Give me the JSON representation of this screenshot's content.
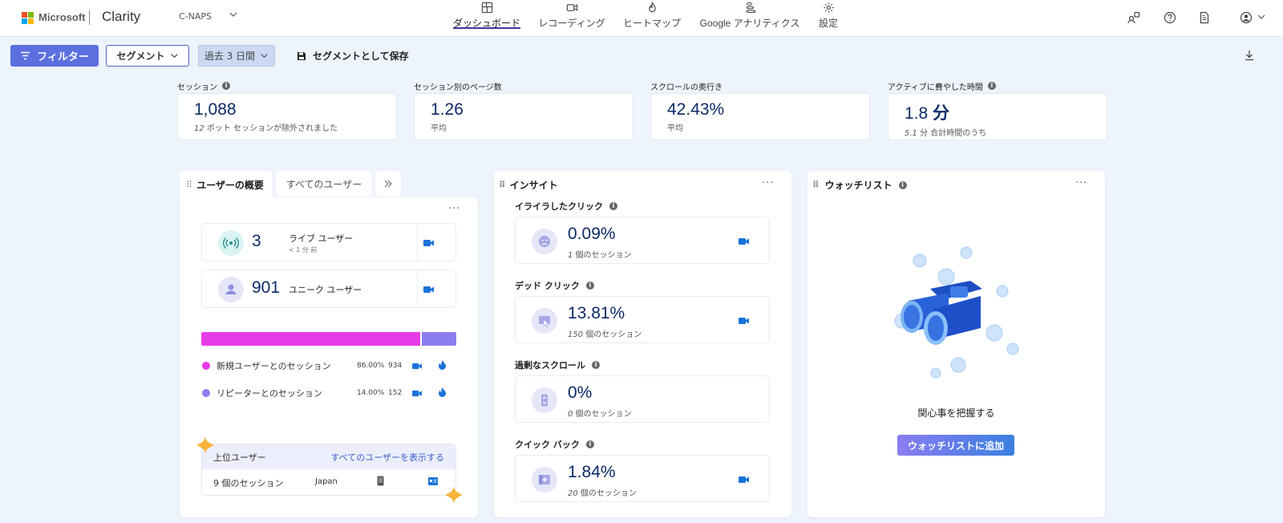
{
  "brand": {
    "company": "Microsoft",
    "app": "Clarity",
    "project": "C-NAPS"
  },
  "nav": [
    {
      "label": "ダッシュボード",
      "icon": "dashboard-icon",
      "active": true
    },
    {
      "label": "レコーディング",
      "icon": "video-icon",
      "active": false
    },
    {
      "label": "ヒートマップ",
      "icon": "flame-icon",
      "active": false
    },
    {
      "label": "Google アナリティクス",
      "icon": "analytics-icon",
      "active": false
    },
    {
      "label": "設定",
      "icon": "gear-icon",
      "active": false
    }
  ],
  "toolbar": {
    "filter_label": "フィルター",
    "segment_label": "セグメント",
    "range_label": "過去 3 日間",
    "save_label": "セグメントとして保存"
  },
  "metrics": [
    {
      "label": "セッション",
      "value": "1,088",
      "sub_num": "12",
      "sub_text": " ボット セッションが除外されました",
      "has_info": true
    },
    {
      "label": "セッション別のページ数",
      "value": "1.26",
      "sub_num": "",
      "sub_text": "平均",
      "has_info": false
    },
    {
      "label": "スクロールの奥行き",
      "value": "42.43%",
      "sub_num": "",
      "sub_text": "平均",
      "has_info": false
    },
    {
      "label": "アクティブに費やした時間",
      "value": "1.8",
      "value_unit": " 分",
      "sub_num": "5.1",
      "sub_text": " 分 合計時間のうち",
      "has_info": true
    }
  ],
  "users_panel": {
    "tab_active": "ユーザーの概要",
    "tab_other": "すべてのユーザー",
    "live": {
      "value": "3",
      "label": "ライブ ユーザー",
      "sub": "< 1 分 前"
    },
    "unique": {
      "value": "901",
      "label": "ユニーク ユーザー"
    },
    "split": {
      "new_fraction": 0.86,
      "new_color": "#e83ce8",
      "return_color": "#8b7ef0"
    },
    "legend": [
      {
        "label": "新規ユーザーとのセッション",
        "pct": "86.00%",
        "count": "934"
      },
      {
        "label": "リピーターとのセッション",
        "pct": "14.00%",
        "count": "152"
      }
    ],
    "top": {
      "title": "上位ユーザー",
      "link": "すべてのユーザーを表示する",
      "sessions": "9 個のセッション",
      "country": "Japan"
    }
  },
  "insights": {
    "title": "インサイト",
    "items": [
      {
        "label": "イライラしたクリック",
        "value": "0.09%",
        "sub_num": "1",
        "sub_text": " 個のセッション",
        "icon": "angry-face-icon"
      },
      {
        "label": "デッド クリック",
        "value": "13.81%",
        "sub_num": "150",
        "sub_text": " 個のセッション",
        "icon": "dead-click-icon"
      },
      {
        "label": "過剰なスクロール",
        "value": "0%",
        "sub_num": "0",
        "sub_text": " 個のセッション",
        "icon": "scroll-icon"
      },
      {
        "label": "クイック バック",
        "value": "1.84%",
        "sub_num": "20",
        "sub_text": " 個のセッション",
        "icon": "quick-back-icon"
      }
    ]
  },
  "watchlist": {
    "title": "ウォッチリスト",
    "empty_text": "関心事を把握する",
    "add_label": "ウォッチリストに追加"
  },
  "colors": {
    "accent": "#5b6fde",
    "navy": "#0c2a66",
    "camera": "#1a73d9"
  }
}
